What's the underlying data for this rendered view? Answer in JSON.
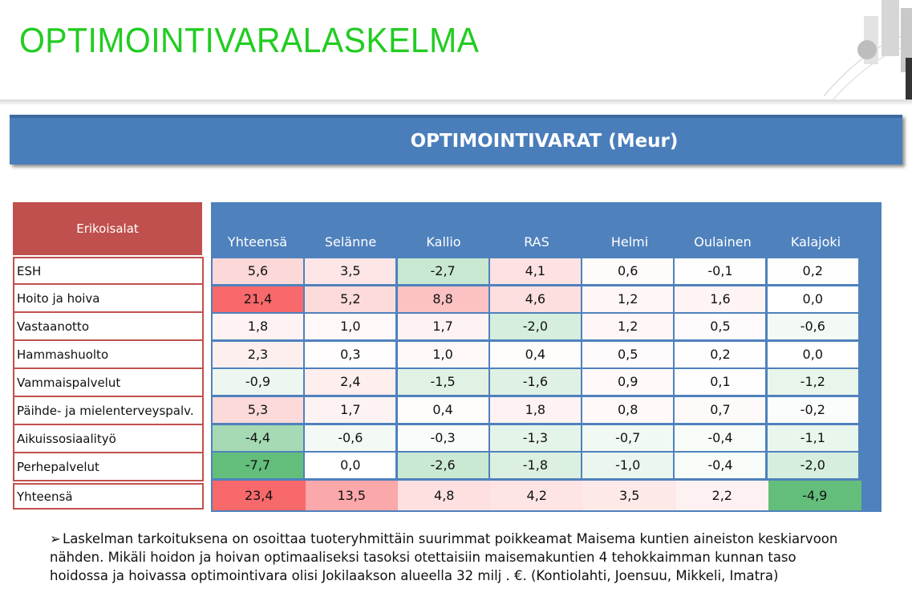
{
  "title": "OPTIMOINTIVARALASKELMA",
  "banner": "OPTIMOINTIVARAT (Meur)",
  "category_header": "Erikoisalat",
  "columns": [
    "Yhteensä",
    "Selänne",
    "Kallio",
    "RAS",
    "Helmi",
    "Oulainen",
    "Kalajoki"
  ],
  "rows": [
    {
      "label": "ESH",
      "values": [
        "5,6",
        "3,5",
        "-2,7",
        "4,1",
        "0,6",
        "-0,1",
        "0,2"
      ]
    },
    {
      "label": "Hoito ja hoiva",
      "values": [
        "21,4",
        "5,2",
        "8,8",
        "4,6",
        "1,2",
        "1,6",
        "0,0"
      ]
    },
    {
      "label": "Vastaanotto",
      "values": [
        "1,8",
        "1,0",
        "1,7",
        "-2,0",
        "1,2",
        "0,5",
        "-0,6"
      ]
    },
    {
      "label": "Hammashuolto",
      "values": [
        "2,3",
        "0,3",
        "1,0",
        "0,4",
        "0,5",
        "0,2",
        "0,0"
      ]
    },
    {
      "label": "Vammaispalvelut",
      "values": [
        "-0,9",
        "2,4",
        "-1,5",
        "-1,6",
        "0,9",
        "0,1",
        "-1,2"
      ]
    },
    {
      "label": "Päihde- ja mielenterveyspalv.",
      "values": [
        "5,3",
        "1,7",
        "0,4",
        "1,8",
        "0,8",
        "0,7",
        "-0,2"
      ]
    },
    {
      "label": "Aikuissosiaalityö",
      "values": [
        "-4,4",
        "-0,6",
        "-0,3",
        "-1,3",
        "-0,7",
        "-0,4",
        "-1,1"
      ]
    },
    {
      "label": "Perhepalvelut",
      "values": [
        "-7,7",
        "0,0",
        "-2,6",
        "-1,8",
        "-1,0",
        "-0,4",
        "-2,0"
      ]
    }
  ],
  "total_row": {
    "label": "Yhteensä",
    "values": [
      "23,4",
      "13,5",
      "4,8",
      "4,2",
      "3,5",
      "2,2",
      "-4,9"
    ]
  },
  "heat_colors": {
    "strong_positive": "#f8696b",
    "strong_negative": "#63be7b",
    "neutral": "#ffffff"
  },
  "note": {
    "bullet_icon": "arrow-bullet-icon",
    "text": "Laskelman tarkoituksena on osoittaa tuoteryhmittäin suurimmat poikkeamat Maisema kuntien aineiston keskiarvoon nähden. Mikäli hoidon ja hoivan  optimaaliseksi tasoksi otettaisiin maisemakuntien 4 tehokkaimman kunnan taso hoidossa ja hoivassa optimointivara olisi  Jokilaakson alueella 32 milj . €. (Kontiolahti, Joensuu, Mikkeli, Imatra)"
  }
}
